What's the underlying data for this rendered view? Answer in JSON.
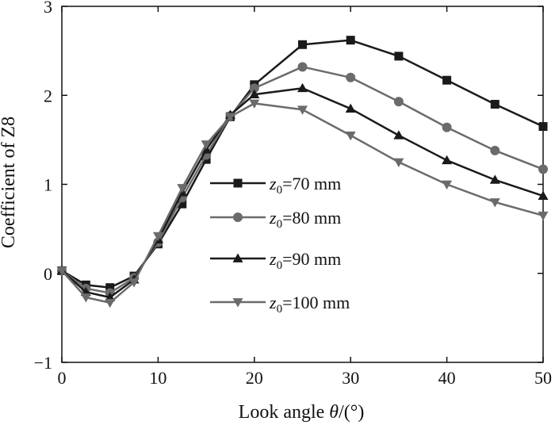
{
  "chart_data": {
    "type": "line",
    "xlabel": "Look angle",
    "xlabel_symbol": "θ",
    "xlabel_unit": "/(°)",
    "ylabel": "Coefficient of Z8",
    "xlim": [
      0,
      50
    ],
    "ylim": [
      -1,
      3
    ],
    "xticks": [
      0,
      10,
      20,
      30,
      40,
      50
    ],
    "yticks": [
      -1,
      0,
      1,
      2,
      3
    ],
    "grid": false,
    "legend_position": "center",
    "legend_var": "z",
    "legend_sub": "0",
    "x": [
      0,
      2.5,
      5,
      7.5,
      10,
      12.5,
      15,
      17.5,
      20,
      25,
      30,
      35,
      40,
      45,
      50
    ],
    "series": [
      {
        "name_suffix": "=70 mm",
        "marker": "square",
        "color": "#1a1a1a",
        "values": [
          0.03,
          -0.13,
          -0.16,
          -0.03,
          0.33,
          0.78,
          1.28,
          1.76,
          2.12,
          2.57,
          2.62,
          2.44,
          2.17,
          1.9,
          1.65
        ]
      },
      {
        "name_suffix": "=80 mm",
        "marker": "circle",
        "color": "#6b6b6b",
        "values": [
          0.03,
          -0.17,
          -0.22,
          -0.05,
          0.35,
          0.85,
          1.33,
          1.77,
          2.08,
          2.32,
          2.2,
          1.93,
          1.64,
          1.38,
          1.17
        ]
      },
      {
        "name_suffix": "=90 mm",
        "marker": "triangle-up",
        "color": "#1a1a1a",
        "values": [
          0.03,
          -0.21,
          -0.27,
          -0.07,
          0.38,
          0.91,
          1.39,
          1.78,
          2.01,
          2.08,
          1.85,
          1.55,
          1.27,
          1.05,
          0.87
        ]
      },
      {
        "name_suffix": "=100 mm",
        "marker": "triangle-down",
        "color": "#6b6b6b",
        "values": [
          0.03,
          -0.27,
          -0.33,
          -0.1,
          0.42,
          0.96,
          1.45,
          1.76,
          1.91,
          1.84,
          1.55,
          1.25,
          1.0,
          0.8,
          0.65
        ]
      }
    ]
  }
}
